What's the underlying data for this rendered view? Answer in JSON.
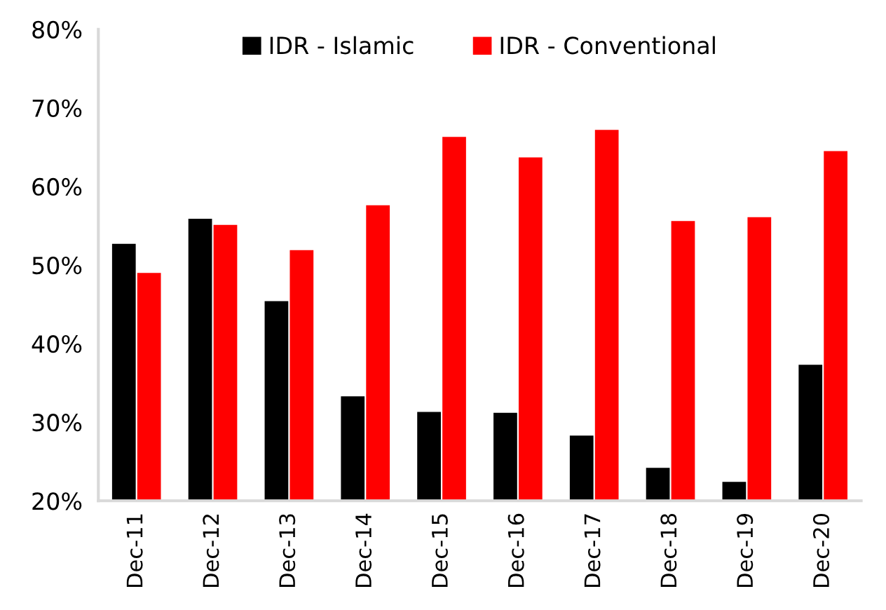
{
  "chart_data": {
    "type": "bar",
    "categories": [
      "Dec-11",
      "Dec-12",
      "Dec-13",
      "Dec-14",
      "Dec-15",
      "Dec-16",
      "Dec-17",
      "Dec-18",
      "Dec-19",
      "Dec-20"
    ],
    "series": [
      {
        "name": "IDR - Islamic",
        "color": "#000000",
        "values": [
          52.7,
          55.9,
          45.4,
          33.3,
          31.3,
          31.2,
          28.3,
          24.2,
          22.4,
          37.3
        ]
      },
      {
        "name": "IDR - Conventional",
        "color": "#ff0000",
        "values": [
          49.0,
          55.1,
          51.9,
          57.6,
          66.3,
          63.7,
          67.2,
          55.6,
          56.1,
          64.5
        ]
      }
    ],
    "ylim": [
      20,
      80
    ],
    "yticks": [
      {
        "value": 20,
        "label": "20%"
      },
      {
        "value": 30,
        "label": "30%"
      },
      {
        "value": 40,
        "label": "40%"
      },
      {
        "value": 50,
        "label": "50%"
      },
      {
        "value": 60,
        "label": "60%"
      },
      {
        "value": 70,
        "label": "70%"
      },
      {
        "value": 80,
        "label": "80%"
      }
    ],
    "legend": "top"
  }
}
